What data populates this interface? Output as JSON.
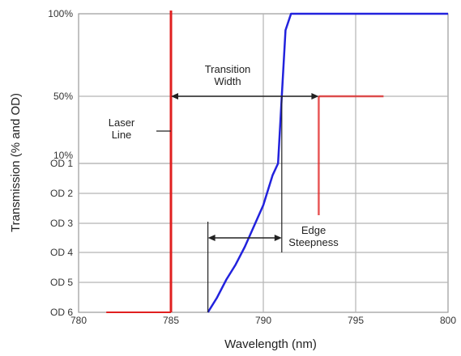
{
  "chart_data": {
    "type": "line",
    "title": "",
    "xlabel": "Wavelength (nm)",
    "ylabel": "Transmission (% and OD)",
    "xlim": [
      780,
      800
    ],
    "x_ticks": [
      "780",
      "785",
      "790",
      "795",
      "800"
    ],
    "y_ticks": [
      "100%",
      "50%",
      "10%",
      "OD 1",
      "OD 2",
      "OD 3",
      "OD 4",
      "OD 5",
      "OD 6"
    ],
    "grid": true,
    "colors": {
      "filter_curve": "#2222dd",
      "laser_line": "#e02020",
      "annotation": "#222222"
    },
    "series": [
      {
        "x": [
          787.0,
          787.5,
          788.0,
          788.5,
          789.0,
          789.5,
          790.0,
          790.5,
          790.8,
          791.0,
          791.2,
          791.5,
          792,
          795,
          800
        ],
        "y": [
          "OD 6",
          "OD 5.5",
          "OD 4.9",
          "OD 4.4",
          "OD 3.8",
          "OD 3.1",
          "OD 2.4",
          "OD 1.4",
          "10%",
          "50%",
          "90%",
          "100%",
          "100%",
          "100%",
          "100%"
        ]
      }
    ],
    "laser_line_nm": 785,
    "annotations": {
      "laser_label": "Laser\nLine",
      "transition_label": "Transition\nWidth",
      "transition_width": {
        "from_nm": 785,
        "to_nm": 793,
        "level": "50%"
      },
      "edge_label": "Edge\nSteepness",
      "edge_steepness": {
        "from_nm": 787,
        "to_nm": 791,
        "level": "OD 4"
      }
    }
  }
}
